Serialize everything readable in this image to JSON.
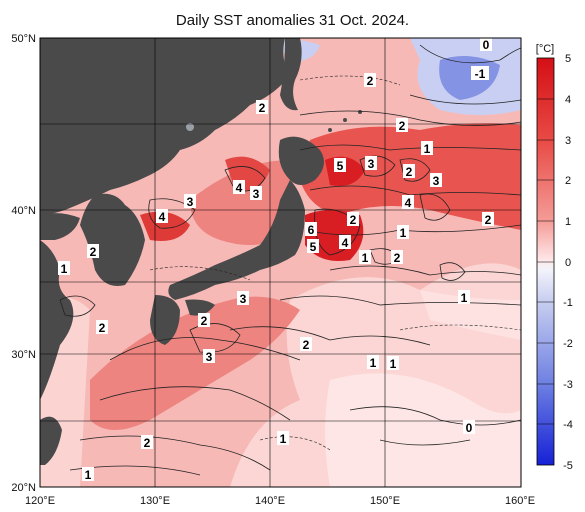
{
  "title": "Daily SST anomalies 31 Oct. 2024.",
  "lat_labels": [
    "50°N",
    "40°N",
    "30°N",
    "20°N"
  ],
  "lon_labels": [
    "120°E",
    "130°E",
    "140°E",
    "150°E",
    "160°E"
  ],
  "colorbar": {
    "unit": "[°C]",
    "ticks": [
      "5",
      "4",
      "3",
      "2",
      "1",
      "0",
      "-1",
      "-2",
      "-3",
      "-4",
      "-5"
    ]
  },
  "colors": {
    "land": "#4a4a4a",
    "sea_light": "#fbd4d2",
    "sea_mid": "#f4a3a0",
    "sea_warm": "#ec7c78",
    "sea_hot": "#e0302f",
    "sea_cold": "#b9c3ee",
    "sea_deep_cold": "#6f82e0"
  },
  "contour_labels": [
    {
      "text": "0"
    },
    {
      "text": "-1"
    },
    {
      "text": "2"
    },
    {
      "text": "2"
    },
    {
      "text": "2"
    },
    {
      "text": "1"
    },
    {
      "text": "5"
    },
    {
      "text": "3"
    },
    {
      "text": "2"
    },
    {
      "text": "3"
    },
    {
      "text": "4"
    },
    {
      "text": "3"
    },
    {
      "text": "4"
    },
    {
      "text": "2"
    },
    {
      "text": "4"
    },
    {
      "text": "3"
    },
    {
      "text": "2"
    },
    {
      "text": "6"
    },
    {
      "text": "5"
    },
    {
      "text": "4"
    },
    {
      "text": "1"
    },
    {
      "text": "1"
    },
    {
      "text": "2"
    },
    {
      "text": "2"
    },
    {
      "text": "1"
    },
    {
      "text": "1"
    },
    {
      "text": "3"
    },
    {
      "text": "2"
    },
    {
      "text": "2"
    },
    {
      "text": "3"
    },
    {
      "text": "2"
    },
    {
      "text": "1"
    },
    {
      "text": "1"
    },
    {
      "text": "0"
    },
    {
      "text": "1"
    },
    {
      "text": "2"
    },
    {
      "text": "1"
    }
  ]
}
